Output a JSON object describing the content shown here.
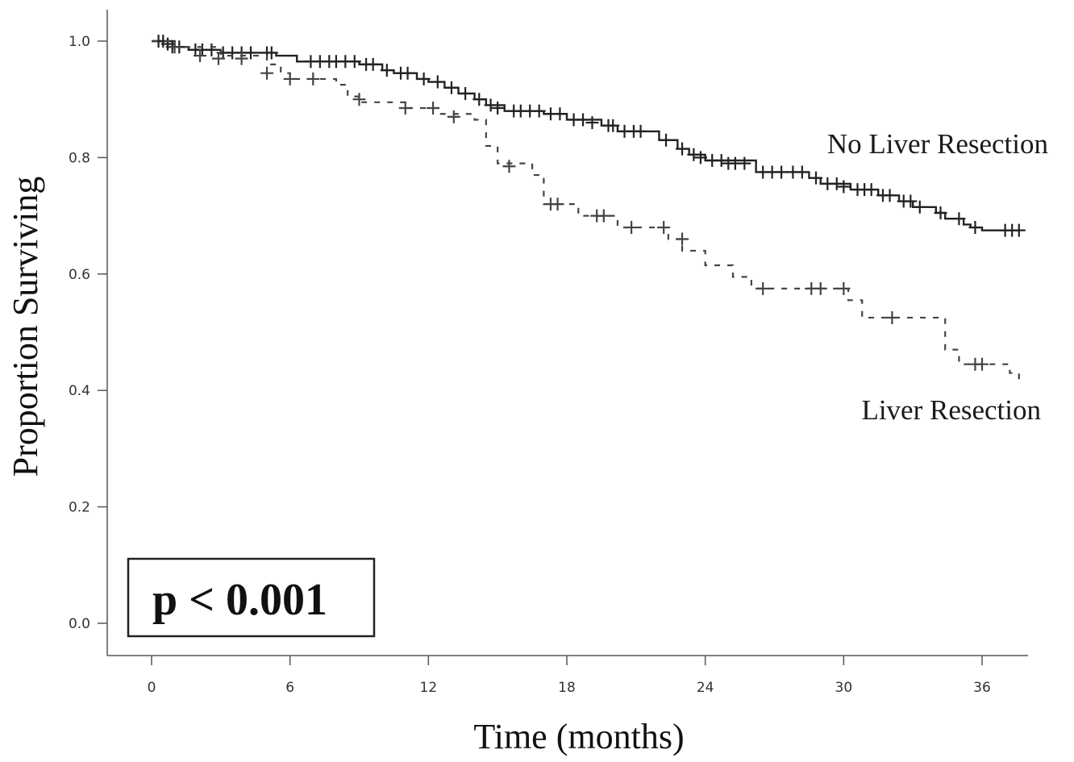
{
  "chart_data": {
    "type": "line",
    "subtype": "kaplan-meier",
    "xlabel": "Time (months)",
    "ylabel": "Proportion Surviving",
    "xlim": [
      0,
      38
    ],
    "ylim": [
      0.0,
      1.0
    ],
    "x_ticks": [
      0,
      6,
      12,
      18,
      24,
      30,
      36
    ],
    "y_ticks": [
      0.0,
      0.2,
      0.4,
      0.6,
      0.8,
      1.0
    ],
    "x_tick_labels": [
      "0",
      "6",
      "12",
      "18",
      "24",
      "30",
      "36"
    ],
    "y_tick_labels": [
      "0.0",
      "0.2",
      "0.4",
      "0.6",
      "0.8",
      "1.0"
    ],
    "grid": false,
    "annotation": "p < 0.001",
    "series": [
      {
        "name": "No Liver Resection",
        "line_style": "solid",
        "color": "#222222",
        "steps": [
          [
            0,
            1.0
          ],
          [
            1,
            0.99
          ],
          [
            1.6,
            0.985
          ],
          [
            3,
            0.98
          ],
          [
            5.4,
            0.975
          ],
          [
            6.3,
            0.965
          ],
          [
            9,
            0.96
          ],
          [
            10,
            0.95
          ],
          [
            10.5,
            0.945
          ],
          [
            11.5,
            0.935
          ],
          [
            12,
            0.93
          ],
          [
            12.7,
            0.92
          ],
          [
            13.3,
            0.91
          ],
          [
            14,
            0.9
          ],
          [
            14.5,
            0.89
          ],
          [
            15.3,
            0.88
          ],
          [
            17,
            0.875
          ],
          [
            18,
            0.865
          ],
          [
            19.5,
            0.855
          ],
          [
            20.2,
            0.845
          ],
          [
            22,
            0.83
          ],
          [
            22.8,
            0.815
          ],
          [
            23.3,
            0.805
          ],
          [
            24,
            0.795
          ],
          [
            26.2,
            0.775
          ],
          [
            28.5,
            0.765
          ],
          [
            29,
            0.755
          ],
          [
            30.3,
            0.745
          ],
          [
            31.5,
            0.735
          ],
          [
            32.4,
            0.725
          ],
          [
            33,
            0.715
          ],
          [
            34,
            0.705
          ],
          [
            34.4,
            0.695
          ],
          [
            35.2,
            0.685
          ],
          [
            35.5,
            0.68
          ],
          [
            36,
            0.675
          ],
          [
            37.6,
            0.675
          ]
        ],
        "censored": [
          [
            0.3,
            1.0
          ],
          [
            0.5,
            1.0
          ],
          [
            0.7,
            0.995
          ],
          [
            0.9,
            0.99
          ],
          [
            1.2,
            0.99
          ],
          [
            1.9,
            0.985
          ],
          [
            2.2,
            0.985
          ],
          [
            2.6,
            0.985
          ],
          [
            3.1,
            0.98
          ],
          [
            3.5,
            0.98
          ],
          [
            3.9,
            0.98
          ],
          [
            4.3,
            0.98
          ],
          [
            5.0,
            0.98
          ],
          [
            5.2,
            0.98
          ],
          [
            6.9,
            0.965
          ],
          [
            7.3,
            0.965
          ],
          [
            7.7,
            0.965
          ],
          [
            8.0,
            0.965
          ],
          [
            8.4,
            0.965
          ],
          [
            8.8,
            0.965
          ],
          [
            9.3,
            0.96
          ],
          [
            9.6,
            0.96
          ],
          [
            10.2,
            0.95
          ],
          [
            10.8,
            0.945
          ],
          [
            11.1,
            0.945
          ],
          [
            11.8,
            0.935
          ],
          [
            12.4,
            0.93
          ],
          [
            13.0,
            0.92
          ],
          [
            13.6,
            0.91
          ],
          [
            14.2,
            0.9
          ],
          [
            14.7,
            0.89
          ],
          [
            15.0,
            0.885
          ],
          [
            15.7,
            0.88
          ],
          [
            16.0,
            0.88
          ],
          [
            16.4,
            0.88
          ],
          [
            16.8,
            0.88
          ],
          [
            17.3,
            0.875
          ],
          [
            17.7,
            0.875
          ],
          [
            18.3,
            0.865
          ],
          [
            18.7,
            0.865
          ],
          [
            19.1,
            0.86
          ],
          [
            19.8,
            0.855
          ],
          [
            20.0,
            0.855
          ],
          [
            20.5,
            0.845
          ],
          [
            20.9,
            0.845
          ],
          [
            21.2,
            0.845
          ],
          [
            22.3,
            0.83
          ],
          [
            23.0,
            0.815
          ],
          [
            23.5,
            0.805
          ],
          [
            23.8,
            0.8
          ],
          [
            24.3,
            0.795
          ],
          [
            24.7,
            0.795
          ],
          [
            25.0,
            0.79
          ],
          [
            25.3,
            0.79
          ],
          [
            25.7,
            0.79
          ],
          [
            26.5,
            0.775
          ],
          [
            26.9,
            0.775
          ],
          [
            27.3,
            0.775
          ],
          [
            27.8,
            0.775
          ],
          [
            28.2,
            0.775
          ],
          [
            28.8,
            0.765
          ],
          [
            29.3,
            0.755
          ],
          [
            29.7,
            0.755
          ],
          [
            30.0,
            0.75
          ],
          [
            30.6,
            0.745
          ],
          [
            30.9,
            0.745
          ],
          [
            31.2,
            0.745
          ],
          [
            31.7,
            0.735
          ],
          [
            32.0,
            0.735
          ],
          [
            32.6,
            0.725
          ],
          [
            32.9,
            0.725
          ],
          [
            33.3,
            0.715
          ],
          [
            34.2,
            0.705
          ],
          [
            35.0,
            0.695
          ],
          [
            35.7,
            0.68
          ],
          [
            37.0,
            0.675
          ],
          [
            37.3,
            0.675
          ],
          [
            37.6,
            0.675
          ]
        ]
      },
      {
        "name": "Liver Resection",
        "line_style": "dashed",
        "color": "#444444",
        "steps": [
          [
            0,
            1.0
          ],
          [
            1,
            0.99
          ],
          [
            3,
            0.975
          ],
          [
            5,
            0.96
          ],
          [
            5.6,
            0.945
          ],
          [
            6,
            0.935
          ],
          [
            8,
            0.925
          ],
          [
            8.5,
            0.905
          ],
          [
            9,
            0.895
          ],
          [
            11,
            0.885
          ],
          [
            12.5,
            0.875
          ],
          [
            14,
            0.865
          ],
          [
            14.5,
            0.82
          ],
          [
            15,
            0.79
          ],
          [
            16.5,
            0.77
          ],
          [
            17,
            0.72
          ],
          [
            18.5,
            0.7
          ],
          [
            20.2,
            0.68
          ],
          [
            22.4,
            0.66
          ],
          [
            23,
            0.64
          ],
          [
            24,
            0.615
          ],
          [
            25.2,
            0.595
          ],
          [
            26,
            0.575
          ],
          [
            30.2,
            0.555
          ],
          [
            30.8,
            0.525
          ],
          [
            34,
            0.525
          ],
          [
            34.4,
            0.47
          ],
          [
            35,
            0.445
          ],
          [
            37.2,
            0.43
          ],
          [
            37.6,
            0.415
          ]
        ],
        "censored": [
          [
            1.0,
            0.99
          ],
          [
            2.1,
            0.975
          ],
          [
            2.9,
            0.97
          ],
          [
            3.9,
            0.97
          ],
          [
            5.0,
            0.945
          ],
          [
            6.0,
            0.935
          ],
          [
            7.0,
            0.935
          ],
          [
            9.0,
            0.9
          ],
          [
            11.0,
            0.885
          ],
          [
            12.2,
            0.885
          ],
          [
            13.1,
            0.87
          ],
          [
            15.5,
            0.785
          ],
          [
            17.3,
            0.72
          ],
          [
            17.6,
            0.72
          ],
          [
            19.3,
            0.7
          ],
          [
            19.6,
            0.7
          ],
          [
            20.8,
            0.68
          ],
          [
            22.2,
            0.68
          ],
          [
            23.0,
            0.66
          ],
          [
            26.5,
            0.575
          ],
          [
            28.6,
            0.575
          ],
          [
            29.0,
            0.575
          ],
          [
            30.0,
            0.575
          ],
          [
            32.1,
            0.525
          ],
          [
            35.7,
            0.445
          ],
          [
            36.0,
            0.445
          ]
        ]
      }
    ]
  }
}
